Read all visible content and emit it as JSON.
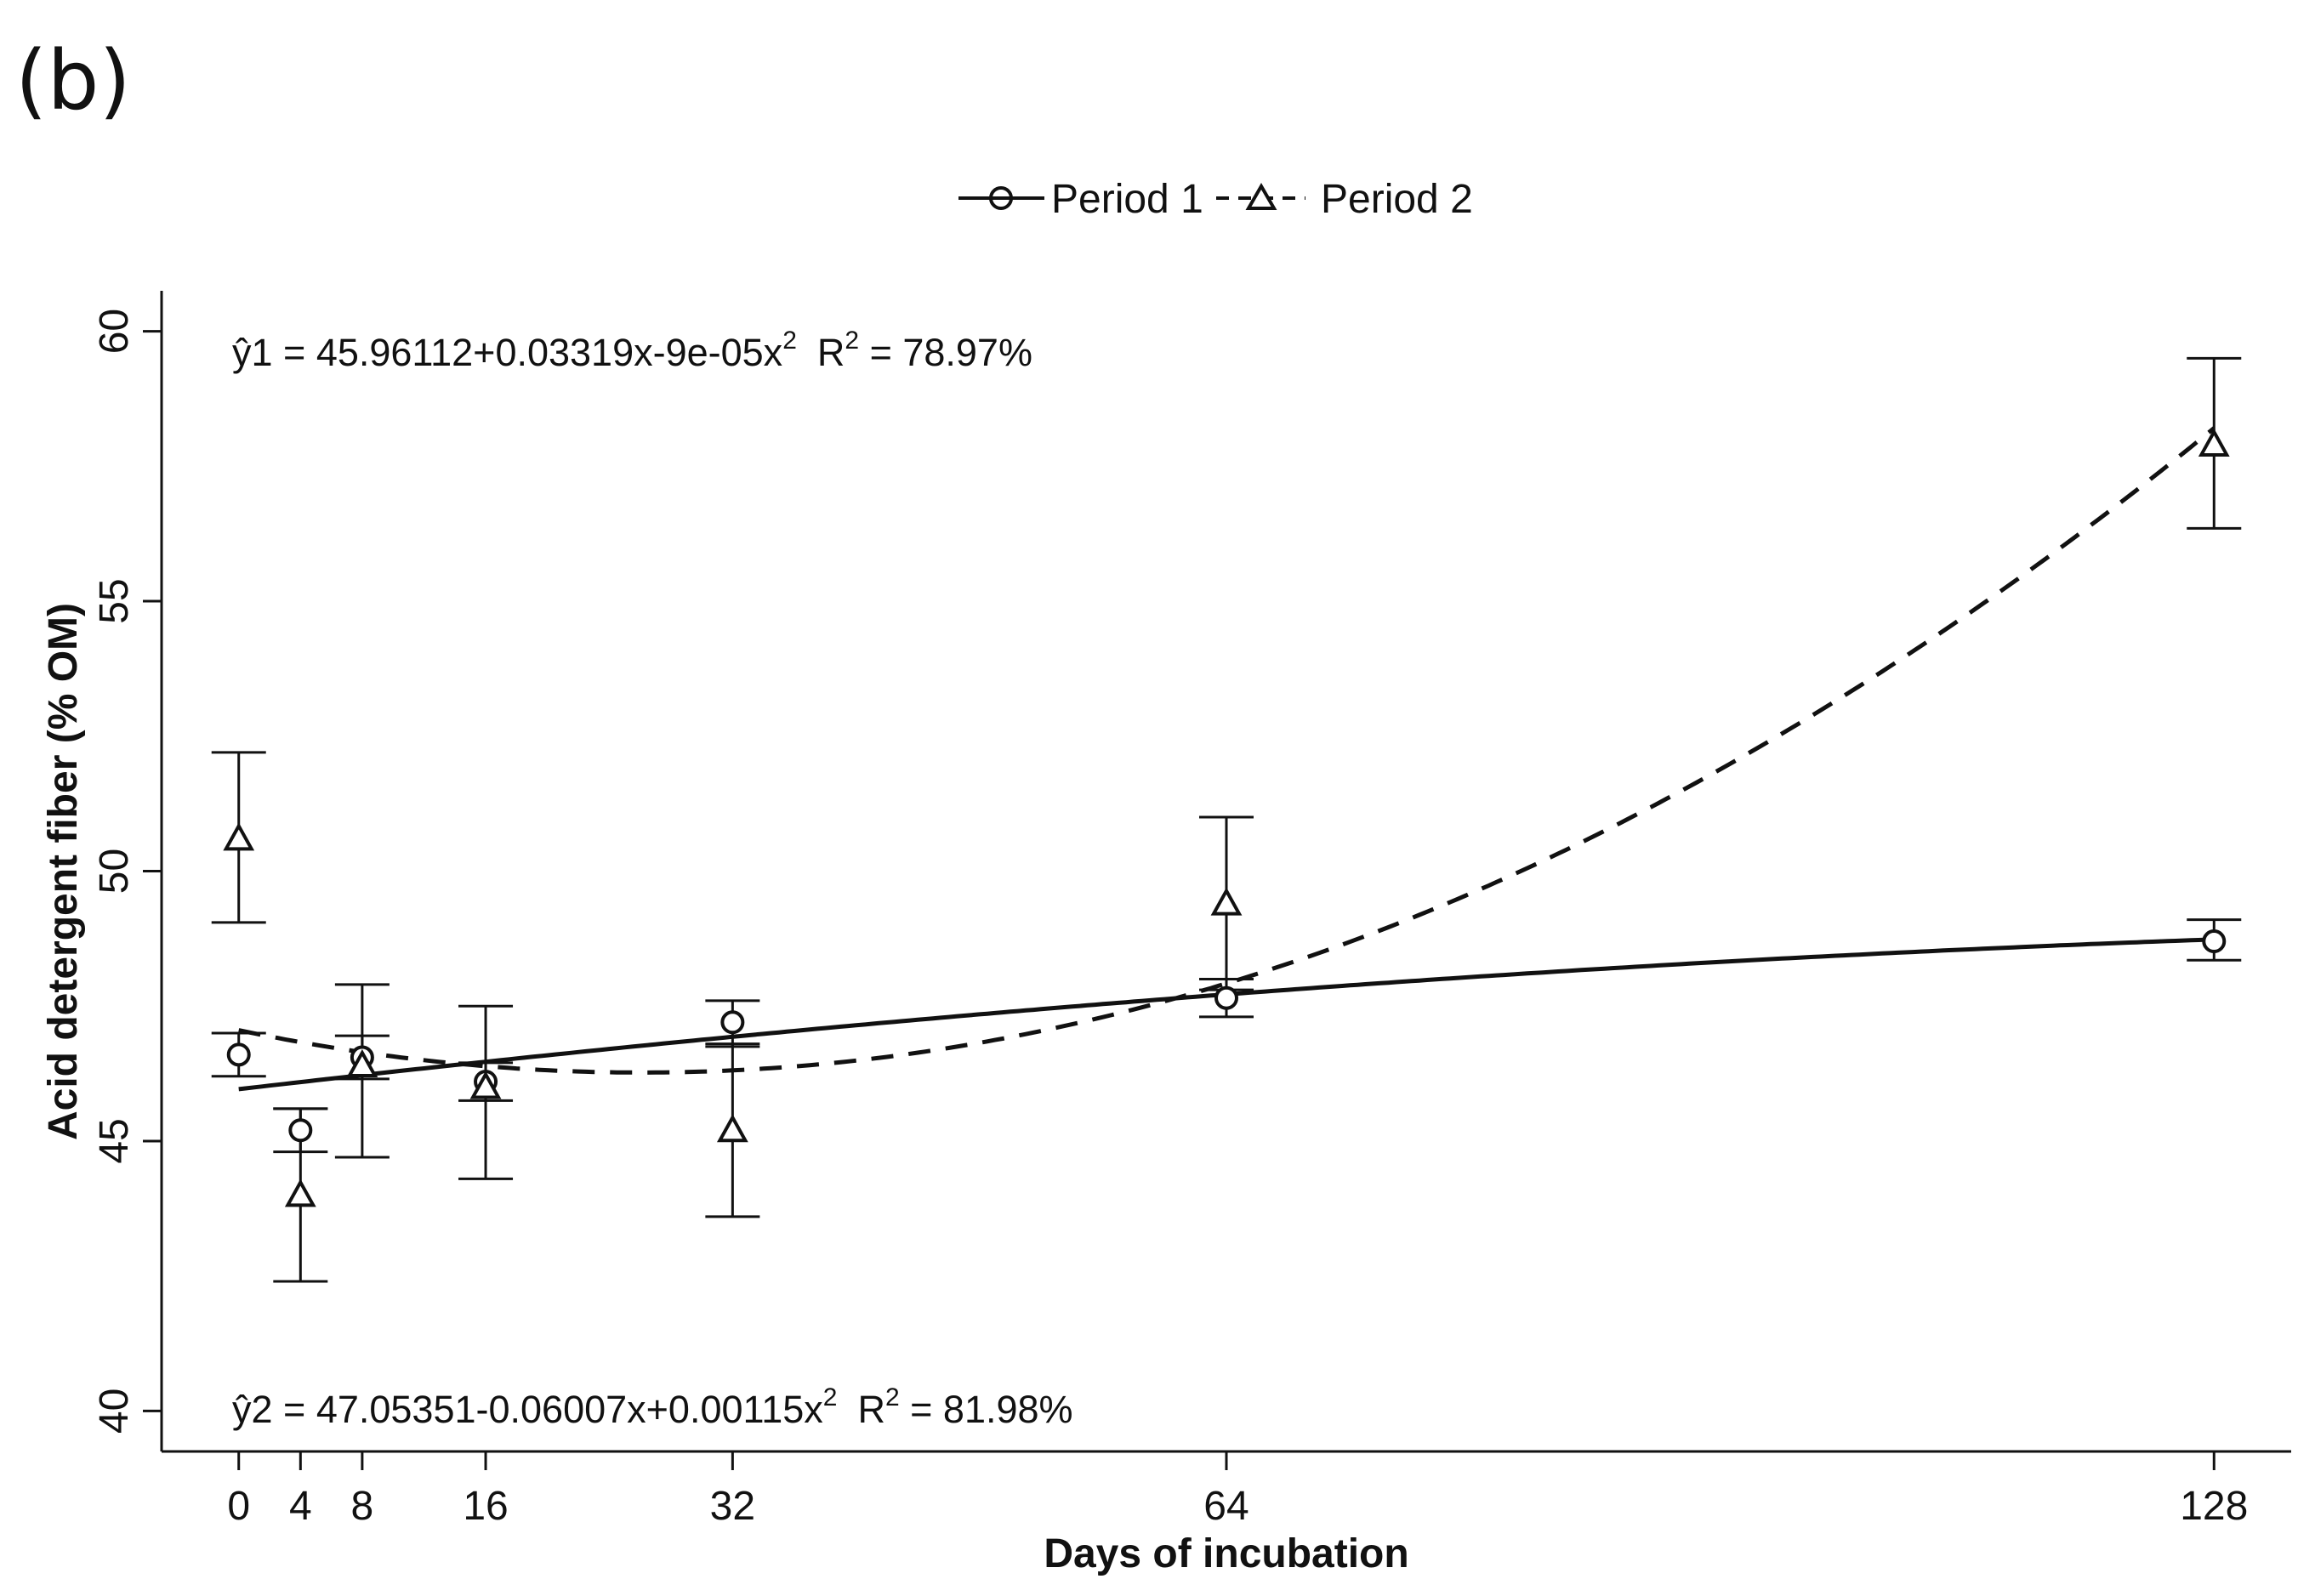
{
  "panel_label": "(b)",
  "chart_data": {
    "type": "line",
    "title": "",
    "xlabel": "Days of incubation",
    "ylabel": "Acid detergent fiber (% OM)",
    "x": [
      0,
      4,
      8,
      16,
      32,
      64,
      128
    ],
    "xticks": [
      "0",
      "4",
      "8",
      "16",
      "32",
      "64",
      "128"
    ],
    "yticks": [
      "40",
      "45",
      "50",
      "55",
      "60"
    ],
    "xlim": [
      -5,
      133
    ],
    "ylim": [
      39.25,
      60.75
    ],
    "grid": false,
    "legend_position": "top-center",
    "series": [
      {
        "name": "Period 1",
        "marker": "circle",
        "line_style": "solid",
        "values": [
          46.6,
          45.2,
          46.55,
          46.1,
          47.2,
          47.65,
          48.7
        ],
        "err_low": [
          46.2,
          44.8,
          46.15,
          45.75,
          46.75,
          47.3,
          48.35
        ],
        "err_high": [
          47.0,
          45.6,
          46.95,
          46.45,
          47.6,
          48.0,
          49.1
        ],
        "fit": {
          "a": 45.96112,
          "b": 0.03319,
          "c": -9e-05
        },
        "equation": {
          "lhs": "ŷ1",
          "body": " = 45.96112+0.03319x-9e-05x",
          "exp": "2",
          "r_label": "R",
          "r_exp": "2",
          "r_value": " = 78.97%"
        }
      },
      {
        "name": "Period 2",
        "marker": "triangle",
        "line_style": "dashed",
        "values": [
          50.6,
          44.0,
          46.4,
          46.0,
          45.2,
          49.4,
          57.9
        ],
        "err_low": [
          49.05,
          42.4,
          44.7,
          44.3,
          43.6,
          47.8,
          56.35
        ],
        "err_high": [
          52.2,
          45.6,
          47.9,
          47.5,
          46.8,
          51.0,
          59.5
        ],
        "fit": {
          "a": 47.05351,
          "b": -0.06007,
          "c": 0.00115
        },
        "equation": {
          "lhs": "ŷ2",
          "body": " = 47.05351-0.06007x+0.00115x",
          "exp": "2",
          "r_label": "R",
          "r_exp": "2",
          "r_value": " = 81.98%"
        }
      }
    ]
  }
}
